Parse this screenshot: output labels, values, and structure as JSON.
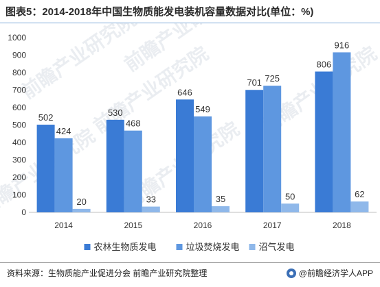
{
  "header": {
    "title": "图表5：2014-2018年中国生物质能发电装机容量数据对比(单位：%)"
  },
  "watermark": {
    "text": "前瞻产业研究院"
  },
  "footer": {
    "source": "资料来源：生物质能产业促进分会 前瞻产业研究院整理",
    "brand": "@前瞻经济学人APP"
  },
  "colors": {
    "series": [
      "#3a7bd5",
      "#5e97e0",
      "#8fb8ea"
    ],
    "axis": "#bfbfbf",
    "title_rule": "#7aa7d8"
  },
  "chart_data": {
    "type": "bar",
    "title": "图表5：2014-2018年中国生物质能发电装机容量数据对比(单位：%)",
    "xlabel": "",
    "ylabel": "",
    "categories": [
      "2014",
      "2015",
      "2016",
      "2017",
      "2018"
    ],
    "series": [
      {
        "name": "农林生物质发电",
        "values": [
          502,
          530,
          646,
          701,
          806
        ]
      },
      {
        "name": "垃圾焚烧发电",
        "values": [
          424,
          468,
          549,
          725,
          916
        ]
      },
      {
        "name": "沼气发电",
        "values": [
          20,
          33,
          35,
          50,
          62
        ]
      }
    ],
    "ylim": [
      0,
      1000
    ],
    "yticks": [
      0,
      100,
      200,
      300,
      400,
      500,
      600,
      700,
      800,
      900,
      1000
    ],
    "grid": false,
    "legend": "bottom-center",
    "data_labels": true
  }
}
